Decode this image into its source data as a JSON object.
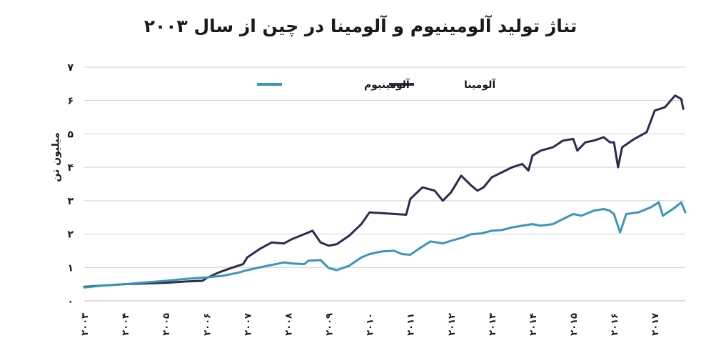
{
  "chart_data": {
    "type": "line",
    "title": "تناژ تولید آلومینیوم و آلومینا در چین از سال ۲۰۰۳",
    "ylabel": "میلیون تن",
    "xlabel": "",
    "ylim": [
      0,
      7
    ],
    "yticks": [
      {
        "value": 0,
        "label": "۰"
      },
      {
        "value": 1,
        "label": "۱"
      },
      {
        "value": 2,
        "label": "۲"
      },
      {
        "value": 3,
        "label": "۳"
      },
      {
        "value": 4,
        "label": "۴"
      },
      {
        "value": 5,
        "label": "۵"
      },
      {
        "value": 6,
        "label": "۶"
      },
      {
        "value": 7,
        "label": "۷"
      }
    ],
    "xticks": [
      {
        "value": 2003,
        "label": "۲۰۰۳"
      },
      {
        "value": 2004,
        "label": "۲۰۰۴"
      },
      {
        "value": 2005,
        "label": "۲۰۰۵"
      },
      {
        "value": 2006,
        "label": "۲۰۰۶"
      },
      {
        "value": 2007,
        "label": "۲۰۰۷"
      },
      {
        "value": 2008,
        "label": "۲۰۰۸"
      },
      {
        "value": 2009,
        "label": "۲۰۰۹"
      },
      {
        "value": 2010,
        "label": "۲۰۱۰"
      },
      {
        "value": 2011,
        "label": "۲۰۱۱"
      },
      {
        "value": 2012,
        "label": "۲۰۱۲"
      },
      {
        "value": 2013,
        "label": "۲۰۱۳"
      },
      {
        "value": 2014,
        "label": "۲۰۱۴"
      },
      {
        "value": 2015,
        "label": "۲۰۱۵"
      },
      {
        "value": 2016,
        "label": "۲۰۱۶"
      },
      {
        "value": 2017,
        "label": "۲۰۱۷"
      }
    ],
    "xlim": [
      2003,
      2017.75
    ],
    "grid": true,
    "legend": "top",
    "series": [
      {
        "name": "آلومینا",
        "color": "#2e2a4f",
        "points": [
          [
            2003.0,
            0.42
          ],
          [
            2003.5,
            0.46
          ],
          [
            2004.0,
            0.5
          ],
          [
            2004.5,
            0.52
          ],
          [
            2005.0,
            0.54
          ],
          [
            2005.5,
            0.58
          ],
          [
            2005.9,
            0.6
          ],
          [
            2006.0,
            0.68
          ],
          [
            2006.3,
            0.85
          ],
          [
            2006.6,
            0.98
          ],
          [
            2006.9,
            1.1
          ],
          [
            2007.0,
            1.3
          ],
          [
            2007.3,
            1.55
          ],
          [
            2007.6,
            1.75
          ],
          [
            2007.9,
            1.72
          ],
          [
            2008.1,
            1.85
          ],
          [
            2008.4,
            2.0
          ],
          [
            2008.6,
            2.1
          ],
          [
            2008.8,
            1.75
          ],
          [
            2009.0,
            1.65
          ],
          [
            2009.2,
            1.7
          ],
          [
            2009.5,
            1.95
          ],
          [
            2009.8,
            2.3
          ],
          [
            2010.0,
            2.65
          ],
          [
            2010.4,
            2.62
          ],
          [
            2010.9,
            2.58
          ],
          [
            2011.0,
            3.05
          ],
          [
            2011.3,
            3.4
          ],
          [
            2011.6,
            3.3
          ],
          [
            2011.8,
            3.0
          ],
          [
            2012.0,
            3.25
          ],
          [
            2012.25,
            3.75
          ],
          [
            2012.5,
            3.45
          ],
          [
            2012.65,
            3.3
          ],
          [
            2012.8,
            3.4
          ],
          [
            2013.0,
            3.7
          ],
          [
            2013.25,
            3.85
          ],
          [
            2013.5,
            4.0
          ],
          [
            2013.75,
            4.1
          ],
          [
            2013.9,
            3.9
          ],
          [
            2014.0,
            4.35
          ],
          [
            2014.2,
            4.5
          ],
          [
            2014.5,
            4.6
          ],
          [
            2014.75,
            4.8
          ],
          [
            2015.0,
            4.85
          ],
          [
            2015.1,
            4.5
          ],
          [
            2015.3,
            4.75
          ],
          [
            2015.5,
            4.8
          ],
          [
            2015.75,
            4.9
          ],
          [
            2015.9,
            4.75
          ],
          [
            2016.0,
            4.75
          ],
          [
            2016.1,
            4.0
          ],
          [
            2016.2,
            4.6
          ],
          [
            2016.5,
            4.85
          ],
          [
            2016.8,
            5.05
          ],
          [
            2017.0,
            5.7
          ],
          [
            2017.25,
            5.8
          ],
          [
            2017.5,
            6.15
          ],
          [
            2017.65,
            6.05
          ],
          [
            2017.7,
            5.75
          ]
        ]
      },
      {
        "name": "آلومینیوم",
        "color": "#3a97b5",
        "points": [
          [
            2003.0,
            0.4
          ],
          [
            2003.5,
            0.46
          ],
          [
            2004.0,
            0.5
          ],
          [
            2004.5,
            0.55
          ],
          [
            2005.0,
            0.6
          ],
          [
            2005.5,
            0.66
          ],
          [
            2006.0,
            0.7
          ],
          [
            2006.4,
            0.75
          ],
          [
            2006.8,
            0.85
          ],
          [
            2007.0,
            0.92
          ],
          [
            2007.5,
            1.05
          ],
          [
            2007.9,
            1.15
          ],
          [
            2008.1,
            1.12
          ],
          [
            2008.4,
            1.1
          ],
          [
            2008.5,
            1.2
          ],
          [
            2008.8,
            1.22
          ],
          [
            2009.0,
            0.98
          ],
          [
            2009.2,
            0.92
          ],
          [
            2009.5,
            1.05
          ],
          [
            2009.8,
            1.3
          ],
          [
            2010.0,
            1.4
          ],
          [
            2010.3,
            1.48
          ],
          [
            2010.6,
            1.5
          ],
          [
            2010.8,
            1.4
          ],
          [
            2011.0,
            1.38
          ],
          [
            2011.2,
            1.55
          ],
          [
            2011.5,
            1.78
          ],
          [
            2011.8,
            1.72
          ],
          [
            2012.0,
            1.8
          ],
          [
            2012.3,
            1.9
          ],
          [
            2012.5,
            2.0
          ],
          [
            2012.75,
            2.02
          ],
          [
            2013.0,
            2.1
          ],
          [
            2013.25,
            2.12
          ],
          [
            2013.5,
            2.2
          ],
          [
            2013.75,
            2.25
          ],
          [
            2014.0,
            2.3
          ],
          [
            2014.2,
            2.25
          ],
          [
            2014.5,
            2.3
          ],
          [
            2014.75,
            2.45
          ],
          [
            2015.0,
            2.6
          ],
          [
            2015.2,
            2.55
          ],
          [
            2015.5,
            2.7
          ],
          [
            2015.75,
            2.75
          ],
          [
            2015.9,
            2.7
          ],
          [
            2016.0,
            2.6
          ],
          [
            2016.15,
            2.05
          ],
          [
            2016.3,
            2.6
          ],
          [
            2016.6,
            2.65
          ],
          [
            2016.9,
            2.8
          ],
          [
            2017.1,
            2.95
          ],
          [
            2017.2,
            2.55
          ],
          [
            2017.5,
            2.8
          ],
          [
            2017.65,
            2.95
          ],
          [
            2017.75,
            2.65
          ]
        ]
      }
    ]
  }
}
